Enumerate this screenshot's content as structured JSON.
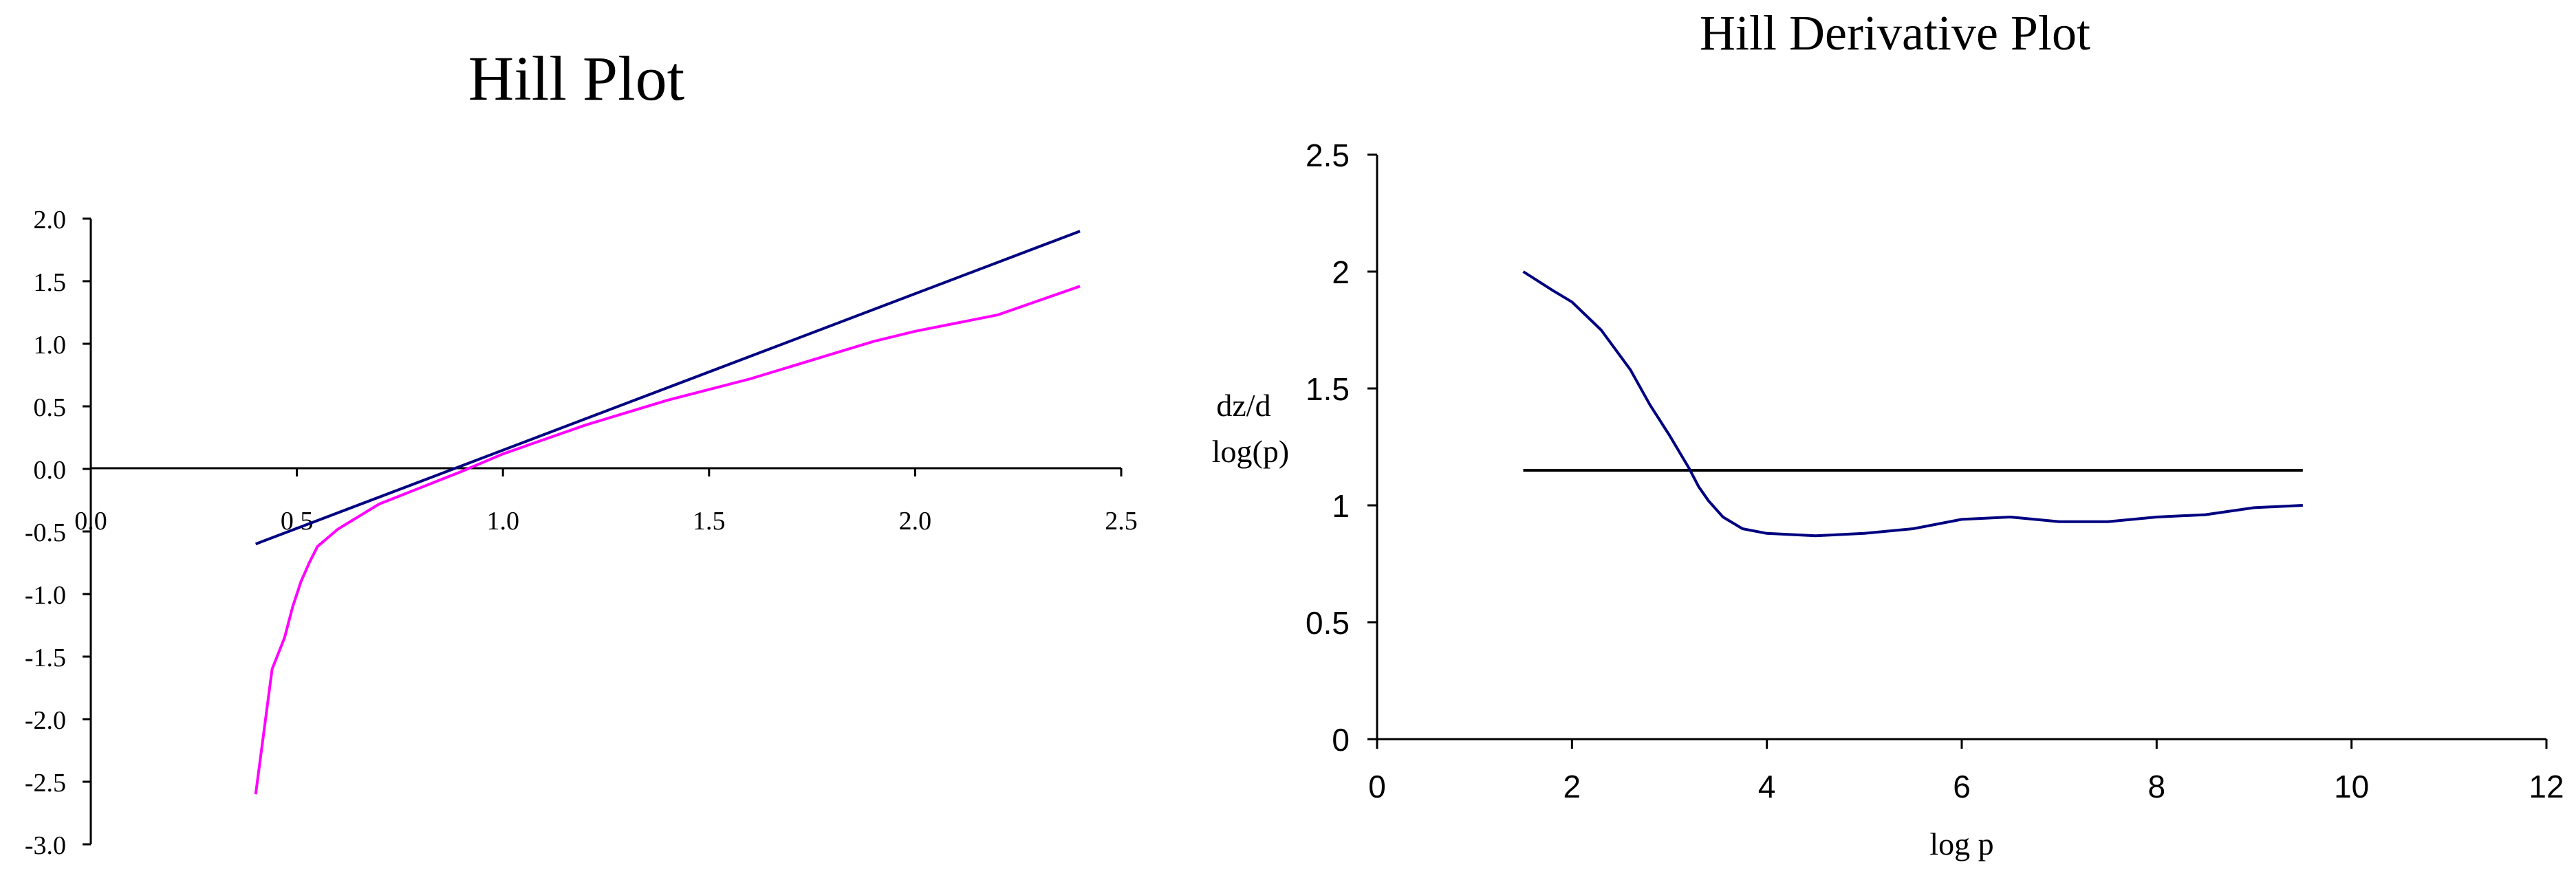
{
  "chart_data": [
    {
      "type": "line",
      "title": "Hill Plot",
      "xlabel": "",
      "ylabel": "",
      "xlim": [
        0.0,
        2.5
      ],
      "ylim": [
        -3.0,
        2.0
      ],
      "x_ticks": [
        "0.0",
        "0.5",
        "1.0",
        "1.5",
        "2.0",
        "2.5"
      ],
      "y_ticks": [
        "2.0",
        "1.5",
        "1.0",
        "0.5",
        "0.0",
        "-0.5",
        "-1.0",
        "-1.5",
        "-2.0",
        "-2.5",
        "-3.0"
      ],
      "grid": false,
      "series": [
        {
          "color": "#000080",
          "points": [
            [
              0.4,
              -0.6
            ],
            [
              2.4,
              1.9
            ]
          ]
        },
        {
          "color": "#ff00ff",
          "points": [
            [
              0.4,
              -2.6
            ],
            [
              0.44,
              -1.6
            ],
            [
              0.47,
              -1.35
            ],
            [
              0.49,
              -1.1
            ],
            [
              0.51,
              -0.9
            ],
            [
              0.53,
              -0.75
            ],
            [
              0.55,
              -0.62
            ],
            [
              0.6,
              -0.48
            ],
            [
              0.65,
              -0.38
            ],
            [
              0.7,
              -0.28
            ],
            [
              0.8,
              -0.15
            ],
            [
              0.9,
              -0.02
            ],
            [
              1.0,
              0.12
            ],
            [
              1.2,
              0.35
            ],
            [
              1.4,
              0.55
            ],
            [
              1.6,
              0.72
            ],
            [
              1.9,
              1.02
            ],
            [
              2.0,
              1.1
            ],
            [
              2.2,
              1.23
            ],
            [
              2.4,
              1.46
            ]
          ]
        }
      ]
    },
    {
      "type": "line",
      "title": "Hill Derivative Plot",
      "xlabel": "log p",
      "ylabel": [
        "dz/d",
        "log(p)"
      ],
      "xlim": [
        0,
        12
      ],
      "ylim": [
        0,
        2.5
      ],
      "x_ticks": [
        "0",
        "2",
        "4",
        "6",
        "8",
        "10",
        "12"
      ],
      "y_ticks": [
        "2.5",
        "2",
        "1.5",
        "1",
        "0.5",
        "0"
      ],
      "grid": false,
      "series": [
        {
          "color": "#000000",
          "points": [
            [
              1.5,
              1.15
            ],
            [
              9.5,
              1.15
            ]
          ]
        },
        {
          "color": "#000080",
          "points": [
            [
              1.5,
              2.0
            ],
            [
              1.8,
              1.92
            ],
            [
              2.0,
              1.87
            ],
            [
              2.3,
              1.75
            ],
            [
              2.6,
              1.58
            ],
            [
              2.8,
              1.43
            ],
            [
              3.0,
              1.3
            ],
            [
              3.2,
              1.16
            ],
            [
              3.3,
              1.08
            ],
            [
              3.4,
              1.02
            ],
            [
              3.55,
              0.95
            ],
            [
              3.75,
              0.9
            ],
            [
              4.0,
              0.88
            ],
            [
              4.5,
              0.87
            ],
            [
              5.0,
              0.88
            ],
            [
              5.5,
              0.9
            ],
            [
              6.0,
              0.94
            ],
            [
              6.5,
              0.95
            ],
            [
              7.0,
              0.93
            ],
            [
              7.5,
              0.93
            ],
            [
              8.0,
              0.95
            ],
            [
              8.5,
              0.96
            ],
            [
              9.0,
              0.99
            ],
            [
              9.5,
              1.0
            ]
          ]
        }
      ]
    }
  ]
}
